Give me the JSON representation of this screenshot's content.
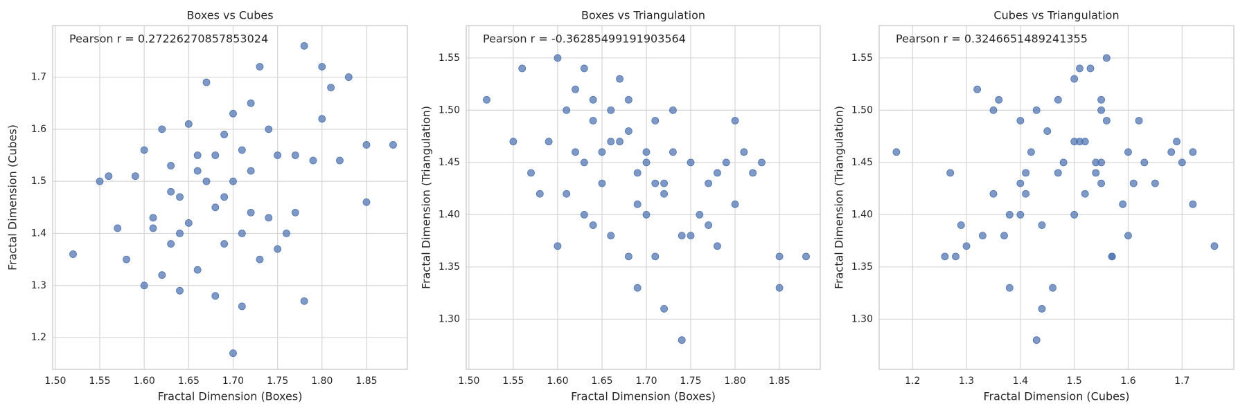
{
  "chart_data": [
    {
      "type": "scatter",
      "title": "Boxes vs Cubes",
      "x_label": "Fractal Dimension (Boxes)",
      "y_label": "Fractal Dimension (Cubes)",
      "annotation": "Pearson r = 0.27226270857853024",
      "color": "#4c72b0",
      "grid": true,
      "xlim": [
        1.497,
        1.896
      ],
      "ylim": [
        1.139,
        1.799
      ],
      "xticks": [
        {
          "value": 1.5,
          "label": "1.50"
        },
        {
          "value": 1.55,
          "label": "1.55"
        },
        {
          "value": 1.6,
          "label": "1.60"
        },
        {
          "value": 1.65,
          "label": "1.65"
        },
        {
          "value": 1.7,
          "label": "1.70"
        },
        {
          "value": 1.75,
          "label": "1.75"
        },
        {
          "value": 1.8,
          "label": "1.80"
        },
        {
          "value": 1.85,
          "label": "1.85"
        }
      ],
      "yticks": [
        1.2,
        1.3,
        1.4,
        1.5,
        1.6,
        1.7
      ],
      "x": [
        1.52,
        1.55,
        1.56,
        1.58,
        1.59,
        1.6,
        1.6,
        1.61,
        1.62,
        1.62,
        1.63,
        1.63,
        1.64,
        1.64,
        1.65,
        1.65,
        1.66,
        1.66,
        1.67,
        1.67,
        1.68,
        1.68,
        1.69,
        1.69,
        1.7,
        1.7,
        1.7,
        1.71,
        1.71,
        1.72,
        1.72,
        1.73,
        1.73,
        1.74,
        1.74,
        1.75,
        1.76,
        1.77,
        1.78,
        1.78,
        1.79,
        1.8,
        1.8,
        1.81,
        1.82,
        1.83,
        1.85,
        1.85,
        1.88,
        1.57,
        1.61,
        1.63,
        1.66,
        1.69,
        1.72,
        1.75,
        1.68,
        1.64,
        1.71,
        1.77
      ],
      "values": [
        1.36,
        1.5,
        1.51,
        1.35,
        1.51,
        1.3,
        1.56,
        1.43,
        1.6,
        1.32,
        1.53,
        1.38,
        1.29,
        1.47,
        1.61,
        1.42,
        1.55,
        1.33,
        1.69,
        1.5,
        1.28,
        1.45,
        1.59,
        1.38,
        1.17,
        1.63,
        1.5,
        1.26,
        1.56,
        1.44,
        1.65,
        1.35,
        1.72,
        1.43,
        1.6,
        1.55,
        1.4,
        1.55,
        1.27,
        1.76,
        1.54,
        1.72,
        1.62,
        1.68,
        1.54,
        1.7,
        1.46,
        1.57,
        1.57,
        1.41,
        1.41,
        1.48,
        1.52,
        1.47,
        1.52,
        1.37,
        1.55,
        1.4,
        1.4,
        1.44
      ]
    },
    {
      "type": "scatter",
      "title": "Boxes vs Triangulation",
      "x_label": "Fractal Dimension (Boxes)",
      "y_label": "Fractal Dimension (Triangulation)",
      "annotation": "Pearson r = -0.36285499191903564",
      "color": "#4c72b0",
      "grid": true,
      "xlim": [
        1.497,
        1.896
      ],
      "ylim": [
        1.252,
        1.581
      ],
      "xticks": [
        {
          "value": 1.5,
          "label": "1.50"
        },
        {
          "value": 1.55,
          "label": "1.55"
        },
        {
          "value": 1.6,
          "label": "1.60"
        },
        {
          "value": 1.65,
          "label": "1.65"
        },
        {
          "value": 1.7,
          "label": "1.70"
        },
        {
          "value": 1.75,
          "label": "1.75"
        },
        {
          "value": 1.8,
          "label": "1.80"
        },
        {
          "value": 1.85,
          "label": "1.85"
        }
      ],
      "yticks": [
        {
          "value": 1.3,
          "label": "1.30"
        },
        {
          "value": 1.35,
          "label": "1.35"
        },
        {
          "value": 1.4,
          "label": "1.40"
        },
        {
          "value": 1.45,
          "label": "1.45"
        },
        {
          "value": 1.5,
          "label": "1.50"
        },
        {
          "value": 1.55,
          "label": "1.55"
        }
      ],
      "x": [
        1.52,
        1.55,
        1.56,
        1.58,
        1.59,
        1.6,
        1.6,
        1.61,
        1.62,
        1.62,
        1.63,
        1.63,
        1.64,
        1.64,
        1.65,
        1.65,
        1.66,
        1.66,
        1.67,
        1.67,
        1.68,
        1.68,
        1.69,
        1.69,
        1.7,
        1.7,
        1.7,
        1.71,
        1.71,
        1.72,
        1.72,
        1.73,
        1.73,
        1.74,
        1.74,
        1.75,
        1.76,
        1.77,
        1.78,
        1.78,
        1.79,
        1.8,
        1.8,
        1.81,
        1.82,
        1.83,
        1.85,
        1.85,
        1.88,
        1.57,
        1.61,
        1.63,
        1.66,
        1.69,
        1.72,
        1.75,
        1.68,
        1.64,
        1.71,
        1.77
      ],
      "values": [
        1.51,
        1.47,
        1.54,
        1.42,
        1.47,
        1.37,
        1.55,
        1.5,
        1.46,
        1.52,
        1.54,
        1.4,
        1.39,
        1.51,
        1.43,
        1.46,
        1.5,
        1.38,
        1.47,
        1.53,
        1.36,
        1.48,
        1.41,
        1.33,
        1.46,
        1.45,
        1.4,
        1.36,
        1.49,
        1.31,
        1.43,
        1.5,
        1.46,
        1.28,
        1.38,
        1.45,
        1.4,
        1.43,
        1.44,
        1.37,
        1.45,
        1.41,
        1.49,
        1.46,
        1.44,
        1.45,
        1.33,
        1.36,
        1.36,
        1.44,
        1.42,
        1.45,
        1.47,
        1.44,
        1.42,
        1.38,
        1.51,
        1.49,
        1.43,
        1.39
      ]
    },
    {
      "type": "scatter",
      "title": "Cubes vs Triangulation",
      "x_label": "Fractal Dimension (Cubes)",
      "y_label": "Fractal Dimension (Triangulation)",
      "annotation": "Pearson r = 0.3246651489241355",
      "color": "#4c72b0",
      "grid": true,
      "xlim": [
        1.138,
        1.796
      ],
      "ylim": [
        1.252,
        1.581
      ],
      "xticks": [
        1.2,
        1.3,
        1.4,
        1.5,
        1.6,
        1.7
      ],
      "yticks": [
        {
          "value": 1.3,
          "label": "1.30"
        },
        {
          "value": 1.35,
          "label": "1.35"
        },
        {
          "value": 1.4,
          "label": "1.40"
        },
        {
          "value": 1.45,
          "label": "1.45"
        },
        {
          "value": 1.5,
          "label": "1.50"
        },
        {
          "value": 1.55,
          "label": "1.55"
        }
      ],
      "x": [
        1.36,
        1.5,
        1.51,
        1.35,
        1.51,
        1.3,
        1.56,
        1.43,
        1.6,
        1.32,
        1.53,
        1.38,
        1.29,
        1.47,
        1.61,
        1.42,
        1.55,
        1.33,
        1.69,
        1.5,
        1.28,
        1.45,
        1.59,
        1.38,
        1.17,
        1.63,
        1.5,
        1.26,
        1.56,
        1.44,
        1.65,
        1.35,
        1.72,
        1.43,
        1.6,
        1.55,
        1.4,
        1.55,
        1.27,
        1.76,
        1.54,
        1.72,
        1.62,
        1.68,
        1.54,
        1.7,
        1.46,
        1.57,
        1.57,
        1.41,
        1.41,
        1.48,
        1.52,
        1.47,
        1.52,
        1.37,
        1.55,
        1.4,
        1.4,
        1.44
      ],
      "values": [
        1.51,
        1.47,
        1.54,
        1.42,
        1.47,
        1.37,
        1.55,
        1.5,
        1.46,
        1.52,
        1.54,
        1.4,
        1.39,
        1.51,
        1.43,
        1.46,
        1.5,
        1.38,
        1.47,
        1.53,
        1.36,
        1.48,
        1.41,
        1.33,
        1.46,
        1.45,
        1.4,
        1.36,
        1.49,
        1.31,
        1.43,
        1.5,
        1.46,
        1.28,
        1.38,
        1.45,
        1.4,
        1.43,
        1.44,
        1.37,
        1.45,
        1.41,
        1.49,
        1.46,
        1.44,
        1.45,
        1.33,
        1.36,
        1.36,
        1.44,
        1.42,
        1.45,
        1.47,
        1.44,
        1.42,
        1.38,
        1.51,
        1.49,
        1.43,
        1.39
      ]
    }
  ]
}
